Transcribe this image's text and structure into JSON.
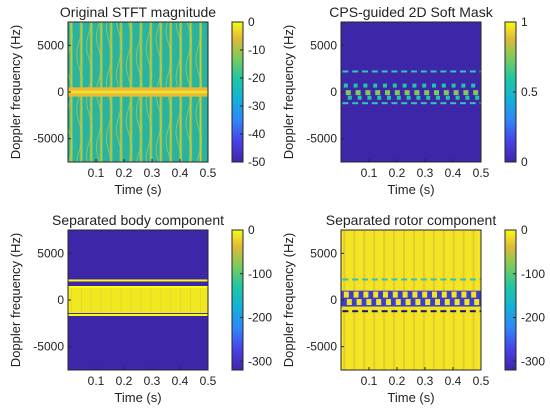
{
  "chart_data": [
    {
      "type": "heatmap",
      "title": "Original STFT magnitude",
      "xlabel": "Time (s)",
      "ylabel": "Doppler frequency (Hz)",
      "xlim": [
        0,
        0.5
      ],
      "ylim": [
        -7500,
        7500
      ],
      "xticks": [
        0.1,
        0.2,
        0.3,
        0.4,
        0.5
      ],
      "yticks": [
        5000,
        0,
        -5000
      ],
      "colorbar": {
        "ticks": [
          0,
          -10,
          -20,
          -30,
          -40,
          -50
        ],
        "range": [
          -50,
          0
        ]
      },
      "content": "stft"
    },
    {
      "type": "heatmap",
      "title": "CPS-guided 2D Soft Mask",
      "xlabel": "Time (s)",
      "ylabel": "Doppler frequency (Hz)",
      "xlim": [
        0,
        0.5
      ],
      "ylim": [
        -7500,
        7500
      ],
      "xticks": [
        0.1,
        0.2,
        0.3,
        0.4,
        0.5
      ],
      "yticks": [
        5000,
        0,
        -5000
      ],
      "colorbar": {
        "ticks": [
          1,
          0.5,
          0
        ],
        "range": [
          0,
          1
        ]
      },
      "content": "mask"
    },
    {
      "type": "heatmap",
      "title": "Separated body component",
      "xlabel": "Time (s)",
      "ylabel": "Doppler frequency (Hz)",
      "xlim": [
        0,
        0.5
      ],
      "ylim": [
        -7500,
        7500
      ],
      "xticks": [
        0.1,
        0.2,
        0.3,
        0.4,
        0.5
      ],
      "yticks": [
        5000,
        0,
        -5000
      ],
      "colorbar": {
        "ticks": [
          0,
          -100,
          -200,
          -300
        ],
        "range": [
          -320,
          0
        ]
      },
      "content": "body"
    },
    {
      "type": "heatmap",
      "title": "Separated rotor component",
      "xlabel": "Time (s)",
      "ylabel": "Doppler frequency (Hz)",
      "xlim": [
        0,
        0.5
      ],
      "ylim": [
        -7500,
        7500
      ],
      "xticks": [
        0.1,
        0.2,
        0.3,
        0.4,
        0.5
      ],
      "yticks": [
        5000,
        0,
        -5000
      ],
      "colorbar": {
        "ticks": [
          0,
          -100,
          -200,
          -300
        ],
        "range": [
          -320,
          0
        ]
      },
      "content": "rotor"
    }
  ],
  "colors": {
    "parula_dark": "#3e26a8",
    "parula_blue": "#2e87f7",
    "parula_teal": "#1fc8a2",
    "parula_green": "#80cb58",
    "parula_yellow": "#f9fb15"
  }
}
